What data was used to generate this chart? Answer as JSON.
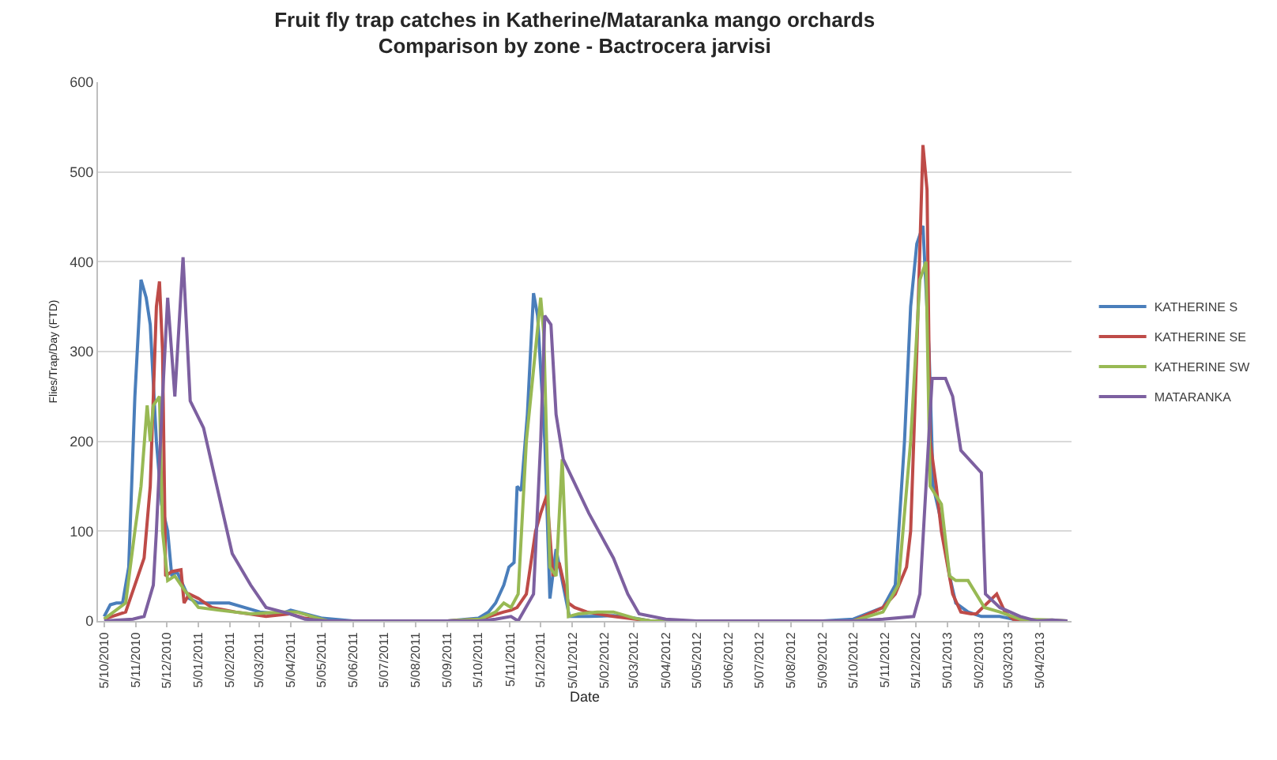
{
  "chart_data": {
    "type": "line",
    "title": "Fruit fly trap catches in Katherine/Mataranka mango orchards",
    "subtitle": "Comparison by zone - Bactrocera jarvisi",
    "xlabel": "Date",
    "ylabel": "Flies/Trap/Day (FTD)",
    "xlim": [
      "2010-09-29",
      "2013-05-06"
    ],
    "ylim": [
      0,
      600
    ],
    "yticks": [
      0,
      100,
      200,
      300,
      400,
      500,
      600
    ],
    "xticks": [
      {
        "value": "2010-10-05",
        "label": "5/10/2010"
      },
      {
        "value": "2010-11-05",
        "label": "5/11/2010"
      },
      {
        "value": "2010-12-05",
        "label": "5/12/2010"
      },
      {
        "value": "2011-01-05",
        "label": "5/01/2011"
      },
      {
        "value": "2011-02-05",
        "label": "5/02/2011"
      },
      {
        "value": "2011-03-05",
        "label": "5/03/2011"
      },
      {
        "value": "2011-04-05",
        "label": "5/04/2011"
      },
      {
        "value": "2011-05-05",
        "label": "5/05/2011"
      },
      {
        "value": "2011-06-05",
        "label": "5/06/2011"
      },
      {
        "value": "2011-07-05",
        "label": "5/07/2011"
      },
      {
        "value": "2011-08-05",
        "label": "5/08/2011"
      },
      {
        "value": "2011-09-05",
        "label": "5/09/2011"
      },
      {
        "value": "2011-10-05",
        "label": "5/10/2011"
      },
      {
        "value": "2011-11-05",
        "label": "5/11/2011"
      },
      {
        "value": "2011-12-05",
        "label": "5/12/2011"
      },
      {
        "value": "2012-01-05",
        "label": "5/01/2012"
      },
      {
        "value": "2012-02-05",
        "label": "5/02/2012"
      },
      {
        "value": "2012-03-05",
        "label": "5/03/2012"
      },
      {
        "value": "2012-04-05",
        "label": "5/04/2012"
      },
      {
        "value": "2012-05-05",
        "label": "5/05/2012"
      },
      {
        "value": "2012-06-05",
        "label": "5/06/2012"
      },
      {
        "value": "2012-07-05",
        "label": "5/07/2012"
      },
      {
        "value": "2012-08-05",
        "label": "5/08/2012"
      },
      {
        "value": "2012-09-05",
        "label": "5/09/2012"
      },
      {
        "value": "2012-10-05",
        "label": "5/10/2012"
      },
      {
        "value": "2012-11-05",
        "label": "5/11/2012"
      },
      {
        "value": "2012-12-05",
        "label": "5/12/2012"
      },
      {
        "value": "2013-01-05",
        "label": "5/01/2013"
      },
      {
        "value": "2013-02-05",
        "label": "5/02/2013"
      },
      {
        "value": "2013-03-05",
        "label": "5/03/2013"
      },
      {
        "value": "2013-04-05",
        "label": "5/04/2013"
      }
    ],
    "grid": "y",
    "legend": "right",
    "marker": "none",
    "line_style": "solid",
    "series": [
      {
        "name": "KATHERINE S",
        "color": "#4a7ebb",
        "x": [
          "2010-10-05",
          "2010-10-11",
          "2010-10-17",
          "2010-10-23",
          "2010-10-29",
          "2010-11-04",
          "2010-11-10",
          "2010-11-15",
          "2010-11-19",
          "2010-11-25",
          "2010-11-30",
          "2010-12-06",
          "2010-12-10",
          "2010-12-15",
          "2010-12-21",
          "2010-12-27",
          "2011-01-05",
          "2011-02-04",
          "2011-03-06",
          "2011-03-27",
          "2011-04-05",
          "2011-04-19",
          "2011-05-06",
          "2011-06-05",
          "2011-07-05",
          "2011-08-05",
          "2011-09-05",
          "2011-10-05",
          "2011-10-15",
          "2011-10-22",
          "2011-10-30",
          "2011-11-04",
          "2011-11-09",
          "2011-11-12",
          "2011-11-16",
          "2011-11-22",
          "2011-11-28",
          "2011-12-02",
          "2011-12-09",
          "2011-12-14",
          "2011-12-20",
          "2011-12-26",
          "2012-01-02",
          "2012-01-21",
          "2012-02-14",
          "2012-03-06",
          "2012-03-21",
          "2012-04-05",
          "2012-05-05",
          "2012-06-05",
          "2012-07-05",
          "2012-08-05",
          "2012-09-05",
          "2012-10-05",
          "2012-11-03",
          "2012-11-15",
          "2012-11-24",
          "2012-11-30",
          "2012-12-06",
          "2012-12-12",
          "2012-12-18",
          "2012-12-22",
          "2012-12-30",
          "2013-01-07",
          "2013-01-13",
          "2013-01-25",
          "2013-02-07",
          "2013-02-25",
          "2013-03-10",
          "2013-03-29",
          "2013-05-02"
        ],
        "values": [
          5,
          18,
          20,
          20,
          60,
          250,
          380,
          360,
          330,
          200,
          130,
          100,
          50,
          55,
          40,
          25,
          20,
          20,
          10,
          8,
          12,
          8,
          3,
          0,
          0,
          0,
          0,
          3,
          10,
          20,
          40,
          60,
          65,
          150,
          145,
          230,
          365,
          340,
          200,
          25,
          80,
          45,
          5,
          5,
          6,
          3,
          0,
          0,
          0,
          0,
          0,
          0,
          0,
          2,
          15,
          40,
          200,
          350,
          420,
          440,
          300,
          150,
          110,
          50,
          20,
          10,
          5,
          5,
          2,
          0,
          0
        ]
      },
      {
        "name": "KATHERINE SE",
        "color": "#be4b48",
        "x": [
          "2010-10-05",
          "2010-10-26",
          "2010-11-04",
          "2010-11-13",
          "2010-11-19",
          "2010-11-25",
          "2010-11-28",
          "2010-12-01",
          "2010-12-04",
          "2010-12-10",
          "2010-12-19",
          "2010-12-22",
          "2010-12-27",
          "2011-01-05",
          "2011-01-18",
          "2011-02-10",
          "2011-03-12",
          "2011-04-04",
          "2011-04-19",
          "2011-05-11",
          "2011-06-05",
          "2011-07-05",
          "2011-08-05",
          "2011-09-05",
          "2011-10-07",
          "2011-10-30",
          "2011-11-06",
          "2011-11-12",
          "2011-11-21",
          "2011-11-30",
          "2011-12-05",
          "2011-12-11",
          "2011-12-17",
          "2011-12-23",
          "2012-01-01",
          "2012-01-07",
          "2012-01-19",
          "2012-02-14",
          "2012-03-21",
          "2012-04-05",
          "2012-05-05",
          "2012-06-05",
          "2012-07-05",
          "2012-08-05",
          "2012-09-05",
          "2012-10-05",
          "2012-11-03",
          "2012-11-15",
          "2012-11-26",
          "2012-11-30",
          "2012-12-06",
          "2012-12-12",
          "2012-12-16",
          "2012-12-19",
          "2012-12-25",
          "2012-12-30",
          "2013-01-10",
          "2013-01-18",
          "2013-01-28",
          "2013-02-02",
          "2013-02-22",
          "2013-03-02",
          "2013-03-10",
          "2013-03-29",
          "2013-05-02"
        ],
        "values": [
          2,
          10,
          40,
          70,
          150,
          350,
          378,
          300,
          50,
          55,
          57,
          20,
          30,
          25,
          15,
          10,
          5,
          8,
          3,
          0,
          0,
          0,
          0,
          0,
          2,
          10,
          12,
          15,
          30,
          100,
          120,
          140,
          50,
          65,
          20,
          15,
          10,
          5,
          0,
          0,
          0,
          0,
          0,
          0,
          0,
          0,
          15,
          30,
          60,
          100,
          300,
          530,
          480,
          200,
          150,
          100,
          30,
          10,
          8,
          8,
          30,
          10,
          2,
          0,
          0
        ]
      },
      {
        "name": "KATHERINE SW",
        "color": "#98b954",
        "x": [
          "2010-10-05",
          "2010-10-26",
          "2010-11-04",
          "2010-11-10",
          "2010-11-16",
          "2010-11-19",
          "2010-11-22",
          "2010-11-28",
          "2010-12-01",
          "2010-12-06",
          "2010-12-13",
          "2010-12-22",
          "2011-01-05",
          "2011-01-25",
          "2011-02-25",
          "2011-03-27",
          "2011-04-11",
          "2011-04-26",
          "2011-05-11",
          "2011-06-05",
          "2011-07-05",
          "2011-08-05",
          "2011-09-05",
          "2011-10-07",
          "2011-10-22",
          "2011-10-30",
          "2011-11-06",
          "2011-11-13",
          "2011-11-21",
          "2011-12-05",
          "2011-12-08",
          "2011-12-14",
          "2011-12-20",
          "2011-12-26",
          "2012-01-01",
          "2012-01-11",
          "2012-01-29",
          "2012-02-14",
          "2012-03-06",
          "2012-03-21",
          "2012-04-05",
          "2012-05-05",
          "2012-06-05",
          "2012-07-05",
          "2012-08-05",
          "2012-09-05",
          "2012-10-05",
          "2012-11-03",
          "2012-11-18",
          "2012-11-30",
          "2012-12-09",
          "2012-12-15",
          "2012-12-19",
          "2012-12-30",
          "2013-01-07",
          "2013-01-13",
          "2013-01-25",
          "2013-02-10",
          "2013-02-25",
          "2013-03-17",
          "2013-04-17",
          "2013-05-02"
        ],
        "values": [
          2,
          20,
          100,
          150,
          240,
          200,
          240,
          250,
          100,
          45,
          50,
          35,
          15,
          12,
          8,
          10,
          10,
          5,
          0,
          0,
          0,
          0,
          0,
          2,
          10,
          20,
          15,
          30,
          200,
          360,
          320,
          60,
          50,
          180,
          5,
          8,
          10,
          10,
          3,
          0,
          0,
          0,
          0,
          0,
          0,
          0,
          0,
          10,
          40,
          200,
          380,
          400,
          150,
          130,
          50,
          45,
          45,
          15,
          10,
          2,
          1,
          0
        ]
      },
      {
        "name": "MATARANKA",
        "color": "#7d60a0",
        "x": [
          "2010-10-05",
          "2010-11-02",
          "2010-11-13",
          "2010-11-22",
          "2010-11-25",
          "2010-12-01",
          "2010-12-06",
          "2010-12-13",
          "2010-12-21",
          "2010-12-28",
          "2011-01-10",
          "2011-01-25",
          "2011-02-07",
          "2011-02-25",
          "2011-03-12",
          "2011-04-04",
          "2011-04-19",
          "2011-05-11",
          "2011-06-05",
          "2011-07-05",
          "2011-08-05",
          "2011-09-05",
          "2011-10-05",
          "2011-10-22",
          "2011-11-06",
          "2011-11-13",
          "2011-11-28",
          "2011-12-05",
          "2011-12-09",
          "2011-12-15",
          "2011-12-20",
          "2011-12-27",
          "2012-01-21",
          "2012-02-14",
          "2012-02-28",
          "2012-03-10",
          "2012-04-05",
          "2012-05-05",
          "2012-06-05",
          "2012-07-05",
          "2012-08-05",
          "2012-09-05",
          "2012-10-05",
          "2012-11-03",
          "2012-12-03",
          "2012-12-09",
          "2012-12-15",
          "2012-12-21",
          "2013-01-03",
          "2013-01-10",
          "2013-01-18",
          "2013-02-07",
          "2013-02-11",
          "2013-02-25",
          "2013-03-17",
          "2013-04-02",
          "2013-04-17",
          "2013-05-02"
        ],
        "values": [
          0,
          2,
          5,
          40,
          100,
          250,
          360,
          250,
          405,
          245,
          215,
          140,
          75,
          40,
          15,
          8,
          2,
          0,
          0,
          0,
          0,
          0,
          0,
          2,
          5,
          0,
          30,
          200,
          340,
          330,
          230,
          180,
          120,
          70,
          30,
          8,
          2,
          0,
          0,
          0,
          0,
          0,
          0,
          2,
          5,
          30,
          150,
          270,
          270,
          250,
          190,
          165,
          30,
          15,
          5,
          0,
          1,
          0
        ]
      }
    ]
  }
}
